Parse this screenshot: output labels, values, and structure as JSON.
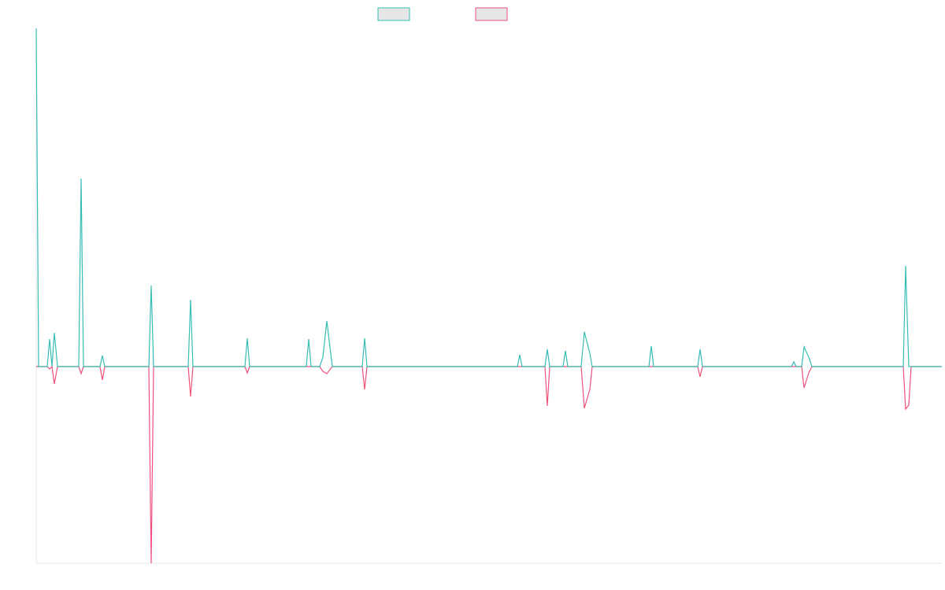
{
  "chart_data": {
    "type": "line",
    "x": [
      0,
      3,
      14,
      17,
      20,
      23,
      27,
      54,
      57,
      60,
      81,
      84,
      87,
      143,
      146,
      149,
      193,
      196,
      199,
      265,
      268,
      271,
      343,
      346,
      349,
      360,
      364,
      369,
      376,
      414,
      417,
      420,
      611,
      614,
      617,
      646,
      649,
      652,
      669,
      672,
      675,
      692,
      696,
      703,
      706,
      778,
      781,
      784,
      840,
      843,
      846,
      959,
      962,
      965,
      972,
      975,
      981,
      985,
      1101,
      1104,
      1108,
      1111,
      1150
    ],
    "xlim": [
      0,
      1150
    ],
    "ylim": [
      -250,
      430
    ],
    "series": [
      {
        "color": "#36bdb5",
        "values": [
          430,
          0,
          0,
          35,
          0,
          43,
          0,
          0,
          239,
          0,
          0,
          14,
          0,
          0,
          103,
          0,
          0,
          85,
          0,
          0,
          36,
          0,
          0,
          35,
          0,
          0,
          12,
          58,
          0,
          0,
          36,
          0,
          0,
          15,
          0,
          0,
          22,
          0,
          0,
          20,
          0,
          0,
          44,
          17,
          0,
          0,
          26,
          0,
          0,
          22,
          0,
          0,
          6,
          0,
          0,
          25,
          12,
          0,
          0,
          128,
          0,
          0,
          0
        ]
      },
      {
        "color": "#f0507a",
        "values": [
          0,
          0,
          0,
          -3,
          0,
          -22,
          0,
          0,
          -9,
          0,
          0,
          -17,
          0,
          0,
          -250,
          0,
          0,
          -38,
          0,
          0,
          -8,
          0,
          0,
          0,
          0,
          0,
          -6,
          -9,
          0,
          0,
          -29,
          0,
          0,
          0,
          0,
          0,
          -50,
          0,
          0,
          0,
          0,
          0,
          -53,
          -29,
          0,
          0,
          0,
          0,
          0,
          -13,
          0,
          0,
          0,
          0,
          0,
          -27,
          -8,
          0,
          0,
          -54,
          -49,
          0,
          0
        ]
      }
    ]
  }
}
